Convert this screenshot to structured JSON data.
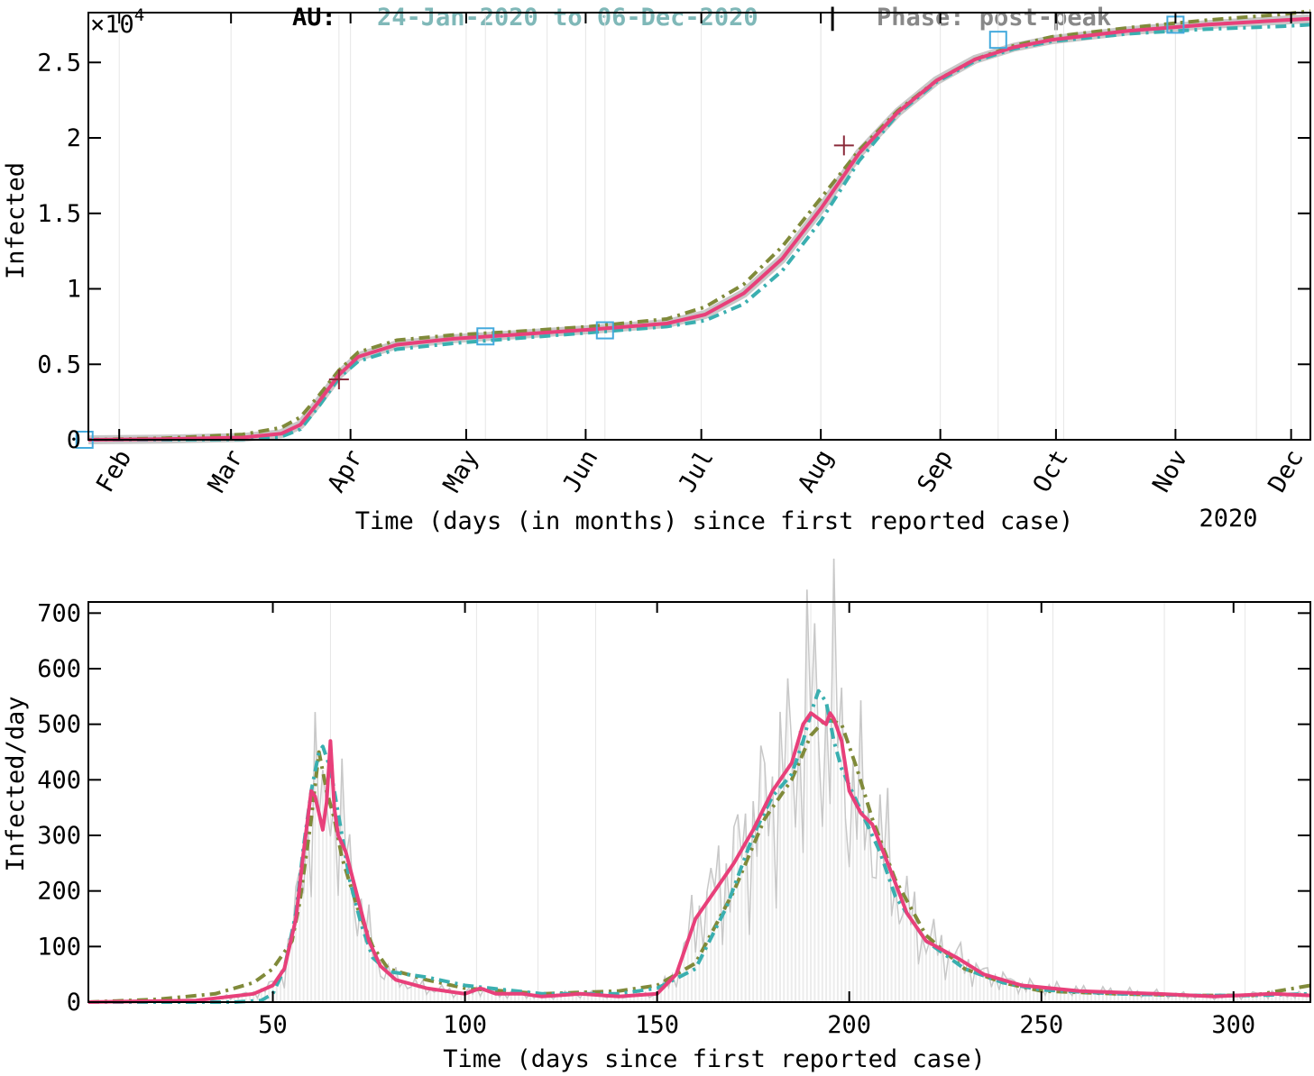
{
  "title": {
    "country": "AU:",
    "date_range": "24-Jan-2020 to 06-Dec-2020",
    "separator": "|",
    "phase": "Phase: post-peak",
    "colors": {
      "country": "#000000",
      "date_range": "#7fb8b8",
      "phase": "#888888"
    }
  },
  "colors": {
    "model_pink": "#e8407a",
    "model_olive": "#808a3a",
    "model_teal": "#3aafb0",
    "data_gray": "#c8c8c8",
    "grid": "#e6e6e6"
  },
  "chart_data": [
    {
      "type": "line",
      "ylabel": "Infected",
      "xlabel": "Time (days (in months) since first reported case)",
      "x_year_label": "2020",
      "y_exponent_label": "×10",
      "y_exponent_power": "4",
      "xlim": [
        0,
        317
      ],
      "ylim": [
        0,
        28300
      ],
      "y_ticks": [
        {
          "value": 0,
          "label": "0"
        },
        {
          "value": 5000,
          "label": "0.5"
        },
        {
          "value": 10000,
          "label": "1"
        },
        {
          "value": 15000,
          "label": "1.5"
        },
        {
          "value": 20000,
          "label": "2"
        },
        {
          "value": 25000,
          "label": "2.5"
        }
      ],
      "x_ticks": [
        {
          "value": 8,
          "label": "Feb"
        },
        {
          "value": 37,
          "label": "Mar"
        },
        {
          "value": 68,
          "label": "Apr"
        },
        {
          "value": 98,
          "label": "May"
        },
        {
          "value": 129,
          "label": "Jun"
        },
        {
          "value": 159,
          "label": "Jul"
        },
        {
          "value": 190,
          "label": "Aug"
        },
        {
          "value": 221,
          "label": "Sep"
        },
        {
          "value": 251,
          "label": "Oct"
        },
        {
          "value": 282,
          "label": "Nov"
        },
        {
          "value": 312,
          "label": "Dec"
        }
      ],
      "grid_x": [
        65,
        103,
        119,
        134,
        190,
        236,
        253,
        282,
        303
      ],
      "markers": [
        {
          "x": -1,
          "y": 0
        },
        {
          "x": 103,
          "y": 6850
        },
        {
          "x": 134,
          "y": 7250
        },
        {
          "x": 236,
          "y": 26500
        },
        {
          "x": 282,
          "y": 27500
        }
      ],
      "cross_markers": [
        {
          "x": 65,
          "y": 4000
        },
        {
          "x": 196,
          "y": 19500
        }
      ],
      "series": [
        {
          "role": "model_olive",
          "x": [
            0,
            20,
            40,
            50,
            55,
            60,
            65,
            70,
            80,
            95,
            110,
            130,
            150,
            160,
            170,
            180,
            190,
            200,
            210,
            220,
            230,
            240,
            250,
            270,
            290,
            310,
            317
          ],
          "y": [
            0,
            100,
            350,
            800,
            1500,
            3000,
            4600,
            5800,
            6600,
            6950,
            7150,
            7500,
            8000,
            8800,
            10300,
            12800,
            16000,
            19200,
            21800,
            23800,
            25200,
            26100,
            26700,
            27300,
            27800,
            28200,
            28400
          ]
        },
        {
          "role": "model_teal",
          "x": [
            0,
            20,
            40,
            50,
            55,
            60,
            65,
            70,
            80,
            95,
            110,
            130,
            150,
            160,
            170,
            180,
            190,
            200,
            210,
            220,
            230,
            240,
            250,
            270,
            290,
            310,
            317
          ],
          "y": [
            0,
            0,
            30,
            200,
            700,
            2300,
            4100,
            5200,
            6000,
            6400,
            6700,
            7100,
            7500,
            7900,
            9000,
            11200,
            14500,
            18500,
            21600,
            23700,
            25100,
            25900,
            26400,
            26900,
            27200,
            27400,
            27500
          ]
        },
        {
          "role": "model_pink",
          "x": [
            0,
            20,
            40,
            50,
            55,
            60,
            65,
            70,
            80,
            95,
            110,
            130,
            150,
            160,
            170,
            180,
            190,
            200,
            210,
            220,
            230,
            240,
            250,
            270,
            290,
            310,
            317
          ],
          "y": [
            0,
            50,
            150,
            400,
            1000,
            2600,
            4300,
            5500,
            6300,
            6700,
            6950,
            7300,
            7700,
            8300,
            9700,
            12000,
            15300,
            19000,
            21700,
            23800,
            25200,
            26000,
            26500,
            27100,
            27500,
            27800,
            27900
          ]
        }
      ]
    },
    {
      "type": "line",
      "ylabel": "Infected/day",
      "xlabel": "Time (days since first reported case)",
      "xlim": [
        2,
        320
      ],
      "ylim": [
        0,
        720
      ],
      "y_ticks": [
        0,
        100,
        200,
        300,
        400,
        500,
        600,
        700
      ],
      "x_ticks": [
        50,
        100,
        150,
        200,
        250,
        300
      ],
      "grid_x": [
        65,
        103,
        119,
        134,
        190,
        236,
        253,
        282,
        303
      ],
      "series": [
        {
          "role": "model_olive",
          "x": [
            2,
            20,
            35,
            45,
            50,
            55,
            57,
            60,
            62,
            64,
            66,
            68,
            72,
            76,
            80,
            90,
            100,
            120,
            140,
            150,
            160,
            170,
            178,
            185,
            190,
            194,
            198,
            202,
            206,
            212,
            220,
            230,
            240,
            250,
            270,
            290,
            305,
            320
          ],
          "y": [
            0,
            5,
            15,
            35,
            60,
            110,
            180,
            330,
            450,
            380,
            330,
            260,
            170,
            100,
            60,
            40,
            25,
            15,
            20,
            30,
            70,
            200,
            330,
            400,
            480,
            510,
            500,
            420,
            330,
            220,
            120,
            60,
            35,
            20,
            15,
            12,
            12,
            30
          ]
        },
        {
          "role": "model_teal",
          "x": [
            2,
            40,
            47,
            50,
            53,
            56,
            58,
            60,
            62,
            63,
            65,
            66,
            68,
            70,
            73,
            76,
            80,
            90,
            100,
            120,
            140,
            150,
            160,
            168,
            175,
            180,
            185,
            188,
            190,
            192,
            194,
            196,
            198,
            200,
            204,
            208,
            212,
            220,
            230,
            240,
            250,
            270,
            290,
            305,
            320
          ],
          "y": [
            0,
            0,
            3,
            15,
            60,
            160,
            280,
            380,
            450,
            460,
            420,
            380,
            300,
            220,
            140,
            80,
            55,
            45,
            30,
            15,
            15,
            25,
            60,
            170,
            300,
            370,
            410,
            470,
            520,
            560,
            540,
            470,
            420,
            390,
            330,
            270,
            190,
            110,
            60,
            35,
            22,
            15,
            12,
            12,
            15
          ]
        },
        {
          "role": "model_pink",
          "x": [
            2,
            30,
            45,
            50,
            53,
            56,
            58,
            60,
            61,
            62,
            63,
            64,
            65,
            66,
            67,
            69,
            72,
            75,
            78,
            82,
            90,
            100,
            104,
            108,
            115,
            120,
            130,
            140,
            150,
            155,
            160,
            165,
            170,
            175,
            180,
            185,
            188,
            190,
            192,
            194,
            195,
            196,
            198,
            200,
            203,
            206,
            210,
            215,
            220,
            228,
            235,
            245,
            260,
            280,
            295,
            310,
            320
          ],
          "y": [
            0,
            3,
            15,
            30,
            60,
            150,
            270,
            380,
            370,
            340,
            310,
            360,
            470,
            350,
            300,
            270,
            190,
            110,
            65,
            40,
            25,
            15,
            25,
            15,
            15,
            10,
            15,
            10,
            15,
            50,
            150,
            200,
            250,
            310,
            380,
            430,
            500,
            520,
            510,
            500,
            520,
            510,
            470,
            380,
            340,
            320,
            250,
            160,
            110,
            80,
            50,
            30,
            20,
            15,
            10,
            15,
            12
          ]
        }
      ]
    }
  ]
}
